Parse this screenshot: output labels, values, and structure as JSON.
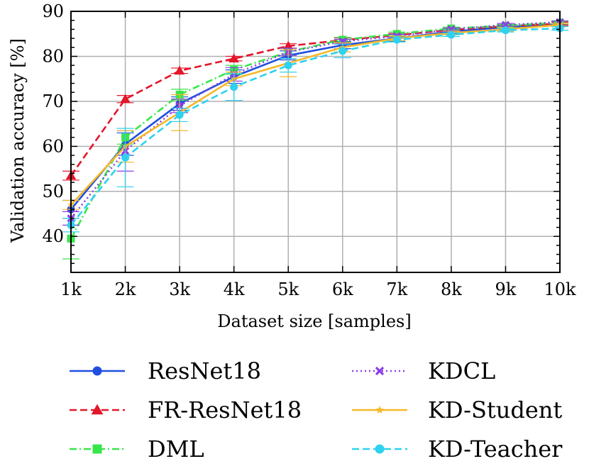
{
  "chart_data": {
    "type": "line",
    "title": "",
    "xlabel": "Dataset size [samples]",
    "ylabel": "Validation accuracy [%]",
    "x": [
      1000,
      2000,
      3000,
      4000,
      5000,
      6000,
      7000,
      8000,
      9000,
      10000
    ],
    "xticks": [
      1000,
      2000,
      3000,
      4000,
      5000,
      6000,
      7000,
      8000,
      9000,
      10000
    ],
    "xtick_labels": [
      "1k",
      "2k",
      "3k",
      "4k",
      "5k",
      "6k",
      "7k",
      "8k",
      "9k",
      "10k"
    ],
    "yticks": [
      40,
      50,
      60,
      70,
      80,
      90
    ],
    "ytick_labels": [
      "40",
      "50",
      "60",
      "70",
      "80",
      "90"
    ],
    "xlim": [
      1000,
      10000
    ],
    "ylim": [
      32,
      90
    ],
    "grid": true,
    "legend_position": "below",
    "series": [
      {
        "name": "ResNet18",
        "color": "#1f4fe0",
        "dash": "solid",
        "marker": "circle",
        "values": [
          46.0,
          60.5,
          69.5,
          75.5,
          80.2,
          82.5,
          84.0,
          85.5,
          86.5,
          87.2
        ],
        "err": [
          2.0,
          2.5,
          1.5,
          1.5,
          1.0,
          0.8,
          0.6,
          0.5,
          0.4,
          0.4
        ]
      },
      {
        "name": "FR-ResNet18",
        "color": "#e3162a",
        "dash": "dashed",
        "marker": "triangle",
        "values": [
          53.5,
          70.5,
          76.8,
          79.5,
          82.3,
          83.6,
          84.7,
          85.9,
          86.7,
          87.3
        ],
        "err": [
          1.0,
          0.8,
          0.6,
          0.5,
          0.5,
          0.5,
          0.4,
          0.3,
          0.3,
          0.3
        ]
      },
      {
        "name": "DML",
        "color": "#37e64a",
        "dash": "dashdot",
        "marker": "square",
        "values": [
          39.5,
          62.0,
          71.5,
          77.0,
          81.0,
          83.7,
          85.0,
          86.2,
          86.8,
          87.5
        ],
        "err": [
          4.5,
          1.5,
          1.2,
          1.0,
          0.8,
          0.5,
          0.4,
          0.3,
          0.3,
          0.3
        ]
      },
      {
        "name": "KDCL",
        "color": "#8c3fe6",
        "dash": "dotted",
        "marker": "x",
        "values": [
          44.0,
          59.0,
          69.0,
          76.0,
          81.0,
          83.3,
          84.5,
          86.0,
          87.0,
          87.6
        ],
        "err": [
          1.5,
          4.5,
          1.5,
          1.5,
          0.8,
          0.5,
          0.4,
          0.3,
          0.3,
          0.3
        ]
      },
      {
        "name": "KD-Student",
        "color": "#f5b829",
        "dash": "solid",
        "marker": "star",
        "values": [
          47.0,
          60.0,
          67.5,
          75.0,
          78.5,
          82.0,
          84.0,
          85.2,
          86.0,
          87.0
        ],
        "err": [
          1.0,
          3.5,
          4.0,
          1.5,
          3.0,
          1.0,
          0.5,
          0.4,
          0.4,
          0.3
        ]
      },
      {
        "name": "KD-Teacher",
        "color": "#2ed1ee",
        "dash": "dashed",
        "marker": "circle",
        "values": [
          42.5,
          57.5,
          67.0,
          73.2,
          78.0,
          81.2,
          83.7,
          84.8,
          85.8,
          86.2
        ],
        "err": [
          1.5,
          6.5,
          1.5,
          3.0,
          1.5,
          1.5,
          0.5,
          0.4,
          0.4,
          0.4
        ]
      }
    ]
  }
}
